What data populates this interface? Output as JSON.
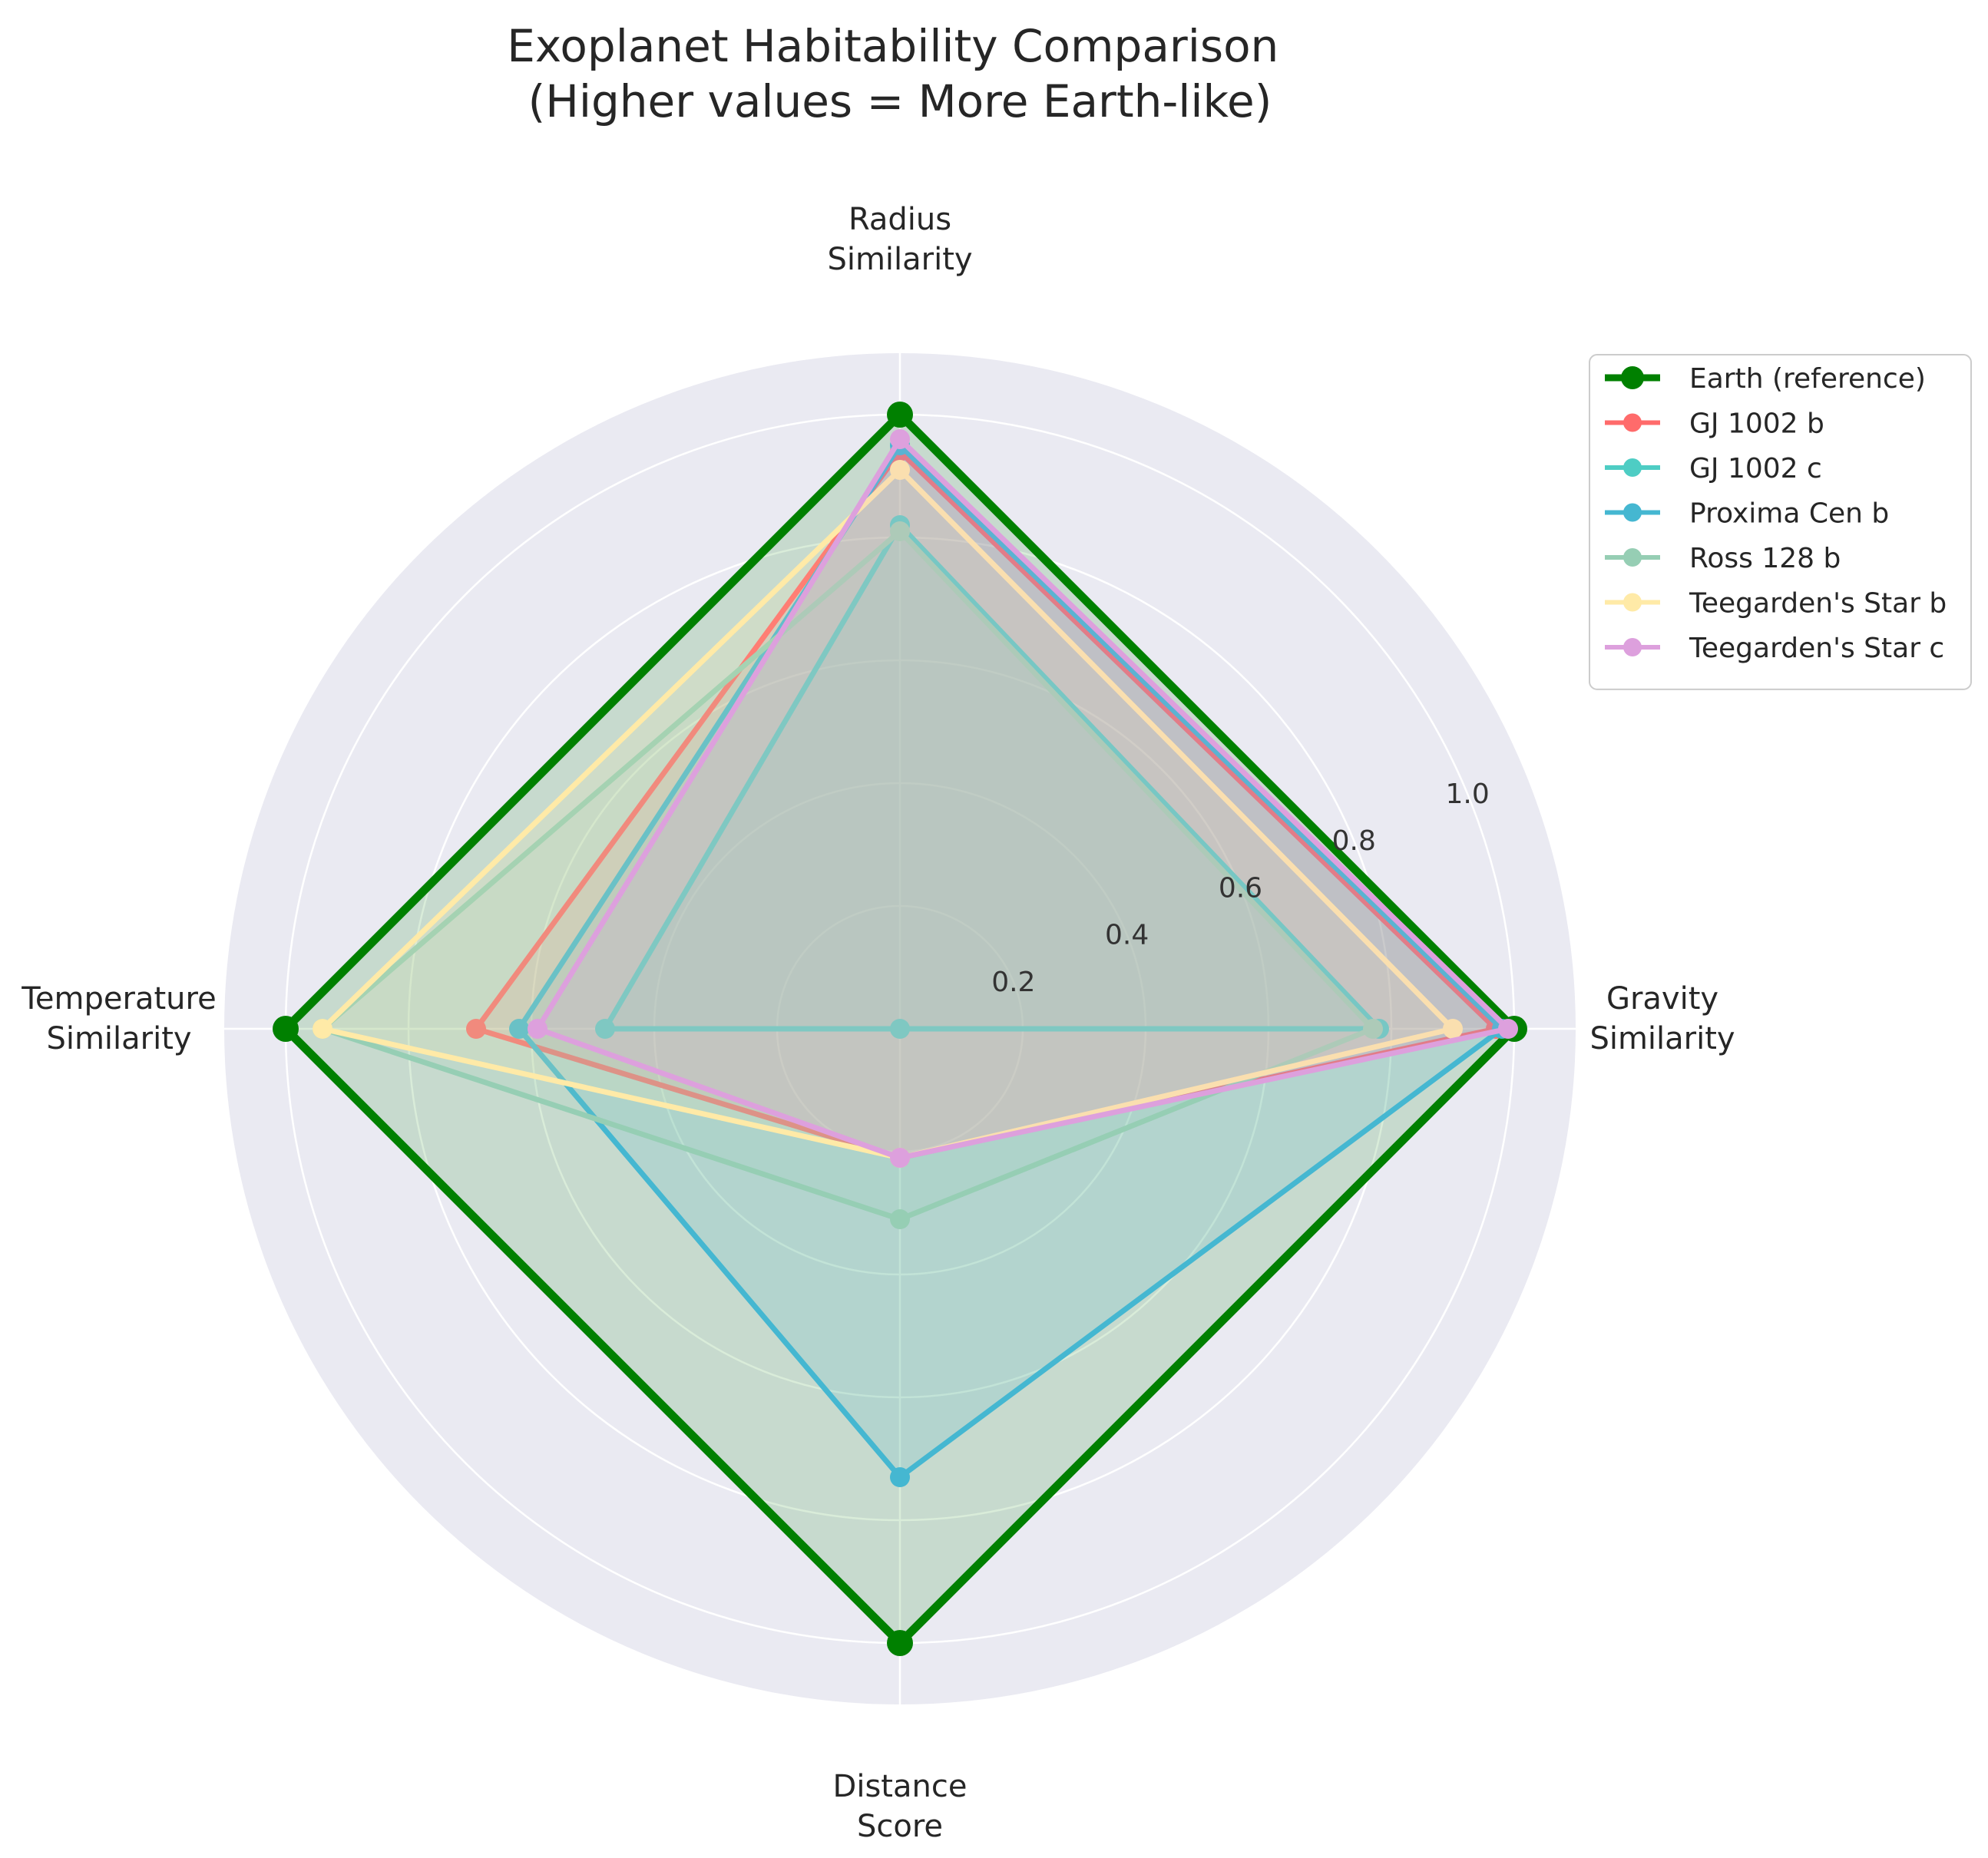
{
  "chart_data": {
    "type": "radar",
    "title": "Exoplanet Habitability Comparison\n(Higher values = More Earth-like)",
    "axes": [
      "Radius\nSimilarity",
      "Gravity\nSimilarity",
      "Distance\nScore",
      "Temperature\nSimilarity"
    ],
    "rlim": [
      0,
      1.1
    ],
    "rticks": [
      0.2,
      0.4,
      0.6,
      0.8,
      1.0
    ],
    "rtick_labels": [
      "0.2",
      "0.4",
      "0.6",
      "0.8",
      "1.0"
    ],
    "grid": true,
    "legend_position": "upper-right outside",
    "series": [
      {
        "name": "Earth (reference)",
        "color": "#008000",
        "values": [
          1.0,
          1.0,
          1.0,
          1.0
        ]
      },
      {
        "name": "GJ 1002 b",
        "color": "#FF6B6B",
        "values": [
          0.94,
          0.97,
          0.21,
          0.69
        ]
      },
      {
        "name": "GJ 1002 c",
        "color": "#4ECDC4",
        "values": [
          0.82,
          0.78,
          0.0,
          0.48
        ]
      },
      {
        "name": "Proxima Cen b",
        "color": "#45B7D1",
        "values": [
          0.95,
          0.98,
          0.73,
          0.62
        ]
      },
      {
        "name": "Ross 128 b",
        "color": "#96CEB4",
        "values": [
          0.81,
          0.77,
          0.31,
          0.94
        ]
      },
      {
        "name": "Teegarden's Star b",
        "color": "#FFEAA7",
        "values": [
          0.91,
          0.9,
          0.21,
          0.94
        ]
      },
      {
        "name": "Teegarden's Star c",
        "color": "#DDA0DD",
        "values": [
          0.96,
          0.99,
          0.21,
          0.59
        ]
      }
    ]
  }
}
